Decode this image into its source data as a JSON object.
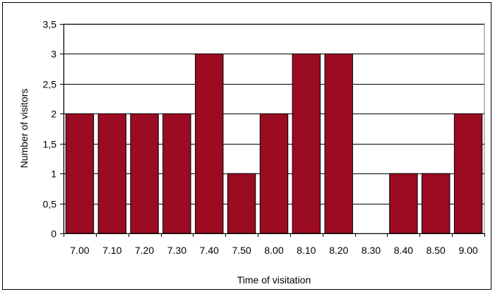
{
  "chart_data": {
    "type": "bar",
    "title": "",
    "xlabel": "Time of visitation",
    "ylabel": "Number of visitors",
    "categories": [
      "7.00",
      "7.10",
      "7.20",
      "7.30",
      "7.40",
      "7.50",
      "8.00",
      "8.10",
      "8.20",
      "8.30",
      "8.40",
      "8.50",
      "9.00"
    ],
    "values": [
      2,
      2,
      2,
      2,
      3,
      1,
      2,
      3,
      3,
      0,
      1,
      1,
      2
    ],
    "ylim": [
      0,
      3.5
    ],
    "yticks": [
      "0",
      "0,5",
      "1",
      "1,5",
      "2",
      "2,5",
      "3",
      "3,5"
    ],
    "grid": true,
    "legend": "none",
    "bar_color": "#9B0B22"
  }
}
